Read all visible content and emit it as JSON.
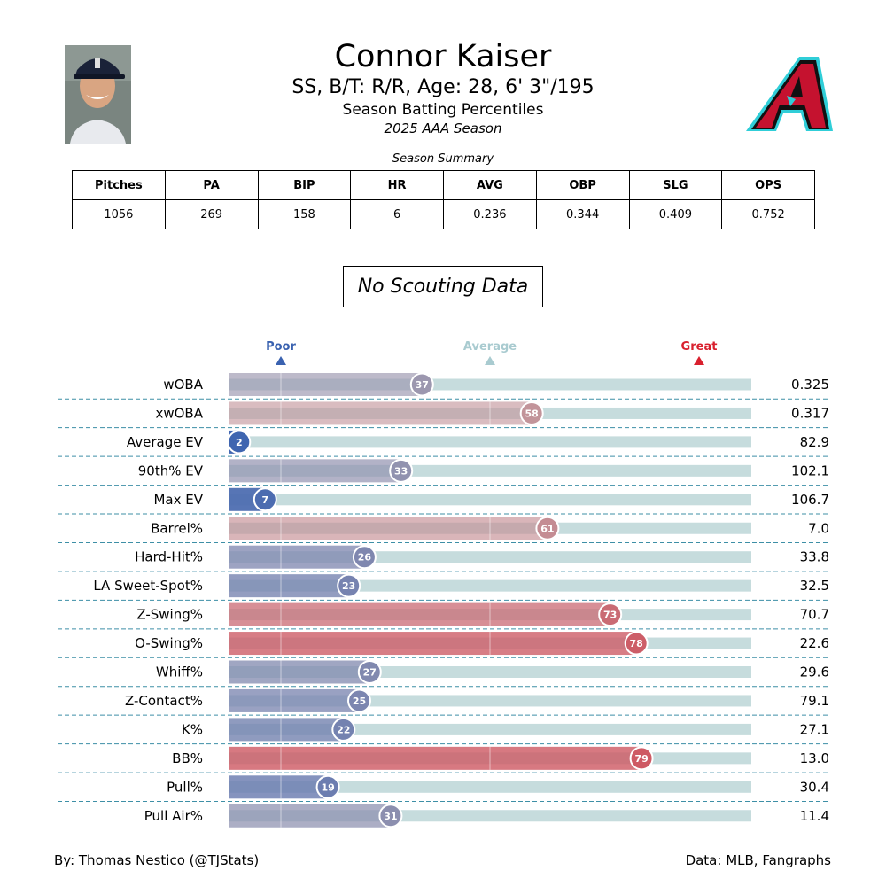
{
  "header": {
    "name": "Connor Kaiser",
    "info": "SS, B/T: R/R, Age: 28, 6' 3\"/195",
    "title": "Season Batting Percentiles",
    "season": "2025 AAA Season"
  },
  "summary": {
    "caption": "Season Summary",
    "headers": [
      "Pitches",
      "PA",
      "BIP",
      "HR",
      "AVG",
      "OBP",
      "SLG",
      "OPS"
    ],
    "values": [
      "1056",
      "269",
      "158",
      "6",
      "0.236",
      "0.344",
      "0.409",
      "0.752"
    ]
  },
  "scouting": {
    "text": "No Scouting Data"
  },
  "colors": {
    "poor": "#3a62b0",
    "average_label": "#a9cbd0",
    "great": "#d9202e",
    "track": "#c6dcdd",
    "divider": "#3d8fa6"
  },
  "chart_data": {
    "type": "bar",
    "orientation": "horizontal",
    "xlim": [
      0,
      100
    ],
    "markers": [
      {
        "label": "Poor",
        "value": 10
      },
      {
        "label": "Average",
        "value": 50
      },
      {
        "label": "Great",
        "value": 90
      }
    ],
    "categories": [
      "wOBA",
      "xwOBA",
      "Average EV",
      "90th% EV",
      "Max EV",
      "Barrel%",
      "Hard-Hit%",
      "LA Sweet-Spot%",
      "Z-Swing%",
      "O-Swing%",
      "Whiff%",
      "Z-Contact%",
      "K%",
      "BB%",
      "Pull%",
      "Pull Air%"
    ],
    "percentiles": [
      37,
      58,
      2,
      33,
      7,
      61,
      26,
      23,
      73,
      78,
      27,
      25,
      22,
      79,
      19,
      31
    ],
    "stat_values": [
      "0.325",
      "0.317",
      "82.9",
      "102.1",
      "106.7",
      "7.0",
      "33.8",
      "32.5",
      "70.7",
      "22.6",
      "29.6",
      "79.1",
      "27.1",
      "13.0",
      "30.4",
      "11.4"
    ]
  },
  "footer": {
    "left": "By: Thomas Nestico (@TJStats)",
    "right": "Data: MLB, Fangraphs"
  }
}
